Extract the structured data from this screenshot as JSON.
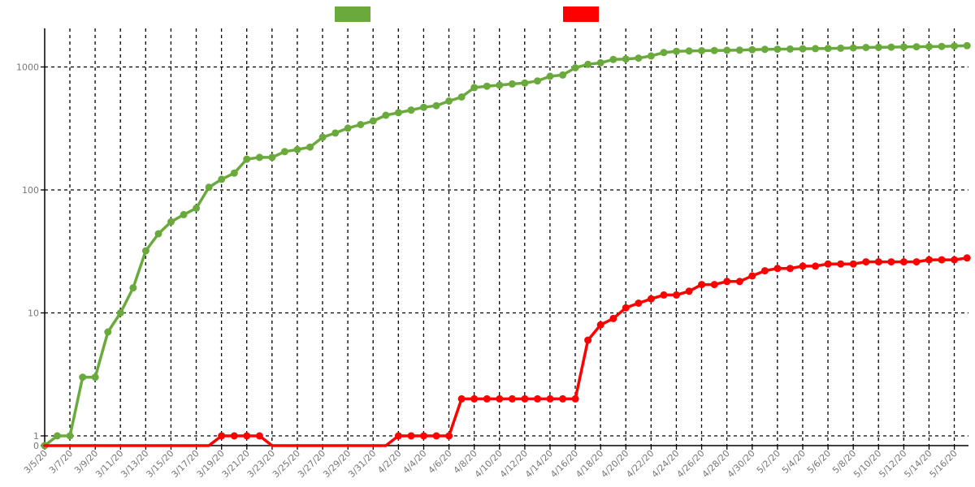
{
  "chart_data": {
    "type": "line",
    "title": "",
    "xlabel": "",
    "ylabel": "",
    "y_scale": "log",
    "y_ticks": [
      {
        "value": 0,
        "label": "0"
      },
      {
        "value": 1,
        "label": "1"
      },
      {
        "value": 10,
        "label": "10"
      },
      {
        "value": 100,
        "label": "100"
      },
      {
        "value": 1000,
        "label": "1000"
      }
    ],
    "x_tick_labels": [
      "3/5/20",
      "3/7/20",
      "3/9/20",
      "3/11/20",
      "3/13/20",
      "3/15/20",
      "3/17/20",
      "3/19/20",
      "3/21/20",
      "3/23/20",
      "3/25/20",
      "3/27/20",
      "3/29/20",
      "3/31/20",
      "4/2/20",
      "4/4/20",
      "4/6/20",
      "4/8/20",
      "4/10/20",
      "4/12/20",
      "4/14/20",
      "4/16/20",
      "4/18/20",
      "4/20/20",
      "4/22/20",
      "4/24/20",
      "4/26/20",
      "4/28/20",
      "4/30/20",
      "5/2/20",
      "5/4/20",
      "5/6/20",
      "5/8/20",
      "5/10/20",
      "5/12/20",
      "5/14/20",
      "5/16/20"
    ],
    "grid": true,
    "legend_position": "top",
    "x": [
      "3/5/20",
      "3/6/20",
      "3/7/20",
      "3/8/20",
      "3/9/20",
      "3/10/20",
      "3/11/20",
      "3/12/20",
      "3/13/20",
      "3/14/20",
      "3/15/20",
      "3/16/20",
      "3/17/20",
      "3/18/20",
      "3/19/20",
      "3/20/20",
      "3/21/20",
      "3/22/20",
      "3/23/20",
      "3/24/20",
      "3/25/20",
      "3/26/20",
      "3/27/20",
      "3/28/20",
      "3/29/20",
      "3/30/20",
      "3/31/20",
      "4/1/20",
      "4/2/20",
      "4/3/20",
      "4/4/20",
      "4/5/20",
      "4/6/20",
      "4/7/20",
      "4/8/20",
      "4/9/20",
      "4/10/20",
      "4/11/20",
      "4/12/20",
      "4/13/20",
      "4/14/20",
      "4/15/20",
      "4/16/20",
      "4/17/20",
      "4/18/20",
      "4/19/20",
      "4/20/20",
      "4/21/20",
      "4/22/20",
      "4/23/20",
      "4/24/20",
      "4/25/20",
      "4/26/20",
      "4/27/20",
      "4/28/20",
      "4/29/20",
      "4/30/20",
      "5/1/20",
      "5/2/20",
      "5/3/20",
      "5/4/20",
      "5/5/20",
      "5/6/20",
      "5/7/20",
      "5/8/20",
      "5/9/20",
      "5/10/20",
      "5/11/20",
      "5/12/20",
      "5/13/20",
      "5/14/20",
      "5/15/20",
      "5/16/20",
      "5/17/20"
    ],
    "series": [
      {
        "color": "#6aaa3c",
        "values": [
          0,
          1,
          1,
          3,
          3,
          7,
          10,
          16,
          32,
          44,
          55,
          63,
          71,
          105,
          122,
          137,
          178,
          184,
          184,
          205,
          213,
          223,
          268,
          290,
          318,
          340,
          364,
          405,
          425,
          446,
          470,
          484,
          528,
          570,
          680,
          698,
          711,
          728,
          740,
          770,
          840,
          860,
          985,
          1050,
          1080,
          1150,
          1160,
          1180,
          1230,
          1310,
          1340,
          1350,
          1355,
          1360,
          1365,
          1370,
          1380,
          1390,
          1395,
          1400,
          1405,
          1410,
          1415,
          1420,
          1430,
          1440,
          1445,
          1450,
          1455,
          1460,
          1465,
          1470,
          1480,
          1490
        ]
      },
      {
        "color": "#ff0000",
        "values": [
          0,
          0,
          0,
          0,
          0,
          0,
          0,
          0,
          0,
          0,
          0,
          0,
          0,
          0,
          1,
          1,
          1,
          1,
          0,
          0,
          0,
          0,
          0,
          0,
          0,
          0,
          0,
          0,
          1,
          1,
          1,
          1,
          1,
          2,
          2,
          2,
          2,
          2,
          2,
          2,
          2,
          2,
          2,
          6,
          8,
          9,
          11,
          12,
          13,
          14,
          14,
          15,
          17,
          17,
          18,
          18,
          20,
          22,
          23,
          23,
          24,
          24,
          25,
          25,
          25,
          26,
          26,
          26,
          26,
          26,
          27,
          27,
          27,
          28
        ]
      }
    ]
  }
}
